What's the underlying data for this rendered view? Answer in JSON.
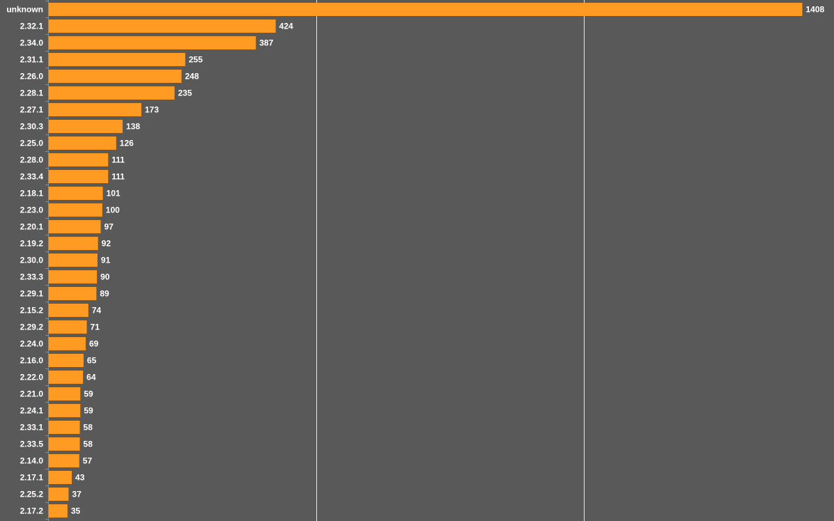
{
  "chart_data": {
    "type": "bar",
    "orientation": "horizontal",
    "title": "",
    "xlabel": "",
    "ylabel": "",
    "xlim": [
      0,
      1500
    ],
    "grid": true,
    "legend": "none",
    "colors": {
      "bar": "#ff9a22",
      "background": "#595959",
      "grid": "#e6e6e6",
      "text": "#ffffff"
    },
    "categories": [
      "unknown",
      "2.32.1",
      "2.34.0",
      "2.31.1",
      "2.26.0",
      "2.28.1",
      "2.27.1",
      "2.30.3",
      "2.25.0",
      "2.28.0",
      "2.33.4",
      "2.18.1",
      "2.23.0",
      "2.20.1",
      "2.19.2",
      "2.30.0",
      "2.33.3",
      "2.29.1",
      "2.15.2",
      "2.29.2",
      "2.24.0",
      "2.16.0",
      "2.22.0",
      "2.21.0",
      "2.24.1",
      "2.33.1",
      "2.33.5",
      "2.14.0",
      "2.17.1",
      "2.25.2",
      "2.17.2"
    ],
    "values": [
      1408,
      424,
      387,
      255,
      248,
      235,
      173,
      138,
      126,
      111,
      111,
      101,
      100,
      97,
      92,
      91,
      90,
      89,
      74,
      71,
      69,
      65,
      64,
      59,
      59,
      58,
      58,
      57,
      43,
      37,
      35
    ]
  }
}
